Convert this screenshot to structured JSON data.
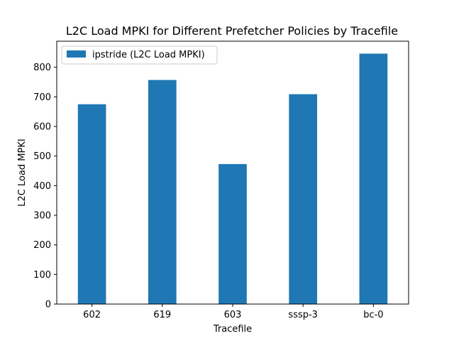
{
  "chart_data": {
    "type": "bar",
    "title": "L2C Load MPKI for Different Prefetcher Policies by Tracefile",
    "xlabel": "Tracefile",
    "ylabel": "L2C Load MPKI",
    "categories": [
      "602",
      "619",
      "603",
      "sssp-3",
      "bc-0"
    ],
    "series": [
      {
        "name": "ipstride (L2C Load MPKI)",
        "values": [
          675,
          757,
          473,
          709,
          846
        ],
        "color": "#1f77b4"
      }
    ],
    "ylim": [
      0,
      888
    ],
    "yticks": [
      0,
      100,
      200,
      300,
      400,
      500,
      600,
      700,
      800
    ],
    "grid": false,
    "legend_position": "top-left"
  }
}
